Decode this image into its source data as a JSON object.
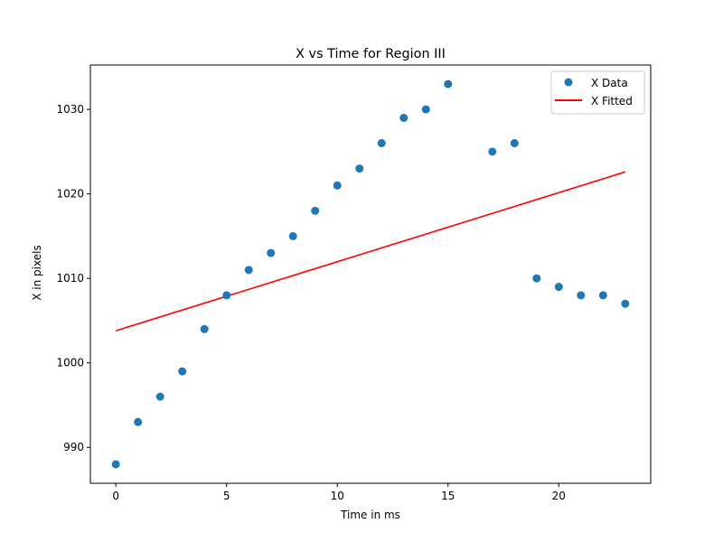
{
  "chart_data": {
    "type": "scatter",
    "title": "X vs Time for Region III",
    "xlabel": "Time in ms",
    "ylabel": "X in pixels",
    "xlim": [
      -1.15,
      24.15
    ],
    "ylim": [
      985.75,
      1035.25
    ],
    "xticks": [
      0,
      5,
      10,
      15,
      20
    ],
    "yticks": [
      990,
      1000,
      1010,
      1020,
      1030
    ],
    "grid": false,
    "legend_position": "upper right",
    "series": [
      {
        "name": "X Data",
        "kind": "scatter",
        "color": "#1f77b4",
        "x": [
          0,
          1,
          2,
          3,
          4,
          5,
          6,
          7,
          8,
          9,
          10,
          11,
          12,
          13,
          14,
          15,
          17,
          18,
          19,
          20,
          21,
          22,
          23
        ],
        "y": [
          988,
          993,
          996,
          999,
          1004,
          1008,
          1011,
          1013,
          1015,
          1018,
          1021,
          1023,
          1026,
          1029,
          1030,
          1033,
          1025,
          1026,
          1010,
          1009,
          1008,
          1008,
          1007
        ]
      },
      {
        "name": "X Fitted",
        "kind": "line",
        "color": "#ff0000",
        "x": [
          0,
          23
        ],
        "y": [
          1003.8,
          1022.6
        ]
      }
    ]
  }
}
